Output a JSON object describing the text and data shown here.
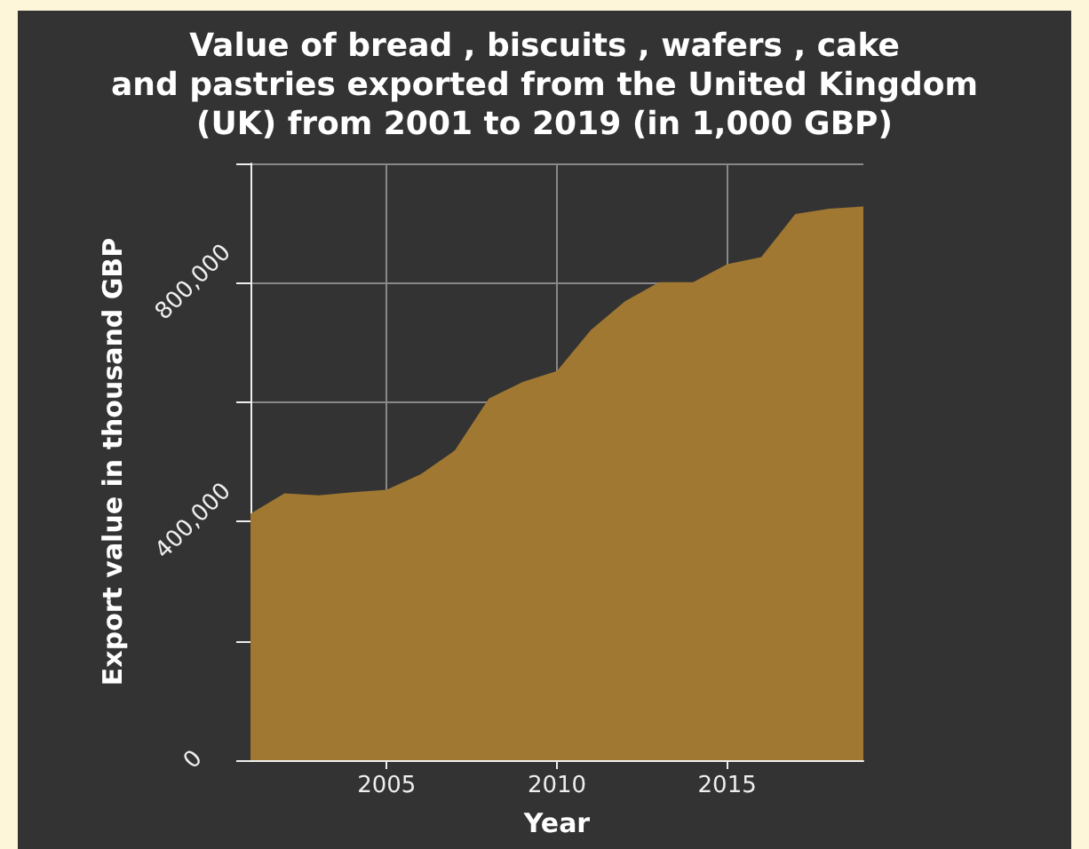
{
  "chart_data": {
    "type": "area",
    "title": "Value of bread , biscuits , wafers , cake\nand pastries exported from the United Kingdom\n(UK) from 2001 to 2019 (in 1,000 GBP)",
    "xlabel": "Year",
    "ylabel": "Export value in thousand GBP",
    "x": [
      2001,
      2002,
      2003,
      2004,
      2005,
      2006,
      2007,
      2008,
      2009,
      2010,
      2011,
      2012,
      2013,
      2014,
      2015,
      2016,
      2017,
      2018,
      2019
    ],
    "values": [
      413000,
      447000,
      444000,
      449000,
      453000,
      479000,
      519000,
      606000,
      634000,
      652000,
      721000,
      769000,
      801000,
      801000,
      831000,
      843000,
      915000,
      924000,
      928000
    ],
    "color": "#a07832",
    "xlim": [
      2001,
      2019
    ],
    "xticks": [
      2005,
      2010,
      2015
    ],
    "ylim": [
      0,
      1000000
    ],
    "yticks": [
      {
        "value": 0,
        "label": "0"
      },
      {
        "value": 200000,
        "label": null
      },
      {
        "value": 400000,
        "label": "400,000"
      },
      {
        "value": 600000,
        "label": null
      },
      {
        "value": 800000,
        "label": "800,000"
      },
      {
        "value": 1000000,
        "label": null
      }
    ],
    "grid": true
  }
}
